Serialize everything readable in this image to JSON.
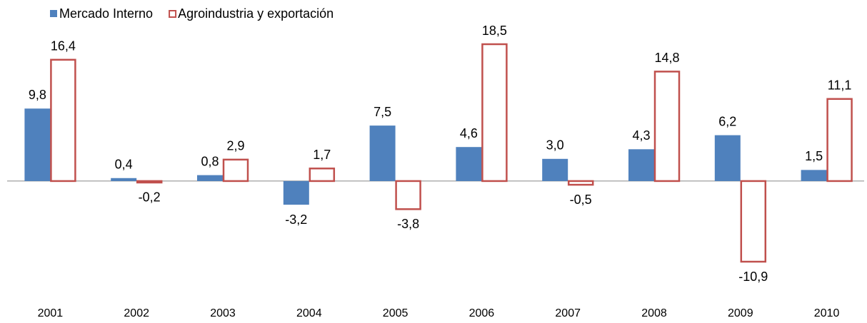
{
  "chart_data": {
    "type": "bar",
    "categories": [
      "2001",
      "2002",
      "2003",
      "2004",
      "2005",
      "2006",
      "2007",
      "2008",
      "2009",
      "2010"
    ],
    "series": [
      {
        "name": "Mercado Interno",
        "color": "#4f81bd",
        "values": [
          9.8,
          0.4,
          0.8,
          -3.2,
          7.5,
          4.6,
          3.0,
          4.3,
          6.2,
          1.5
        ],
        "value_labels": [
          "9,8",
          "0,4",
          "0,8",
          "-3,2",
          "7,5",
          "4,6",
          "3,0",
          "4,3",
          "6,2",
          "1,5"
        ]
      },
      {
        "name": "Agroindustria y exportación",
        "color": "#c0504d",
        "values": [
          16.4,
          -0.2,
          2.9,
          1.7,
          -3.8,
          18.5,
          -0.5,
          14.8,
          -10.9,
          11.1
        ],
        "value_labels": [
          "16,4",
          "-0,2",
          "2,9",
          "1,7",
          "-3,8",
          "18,5",
          "-0,5",
          "14,8",
          "-10,9",
          "11,1"
        ]
      }
    ],
    "legend": "top-left"
  }
}
